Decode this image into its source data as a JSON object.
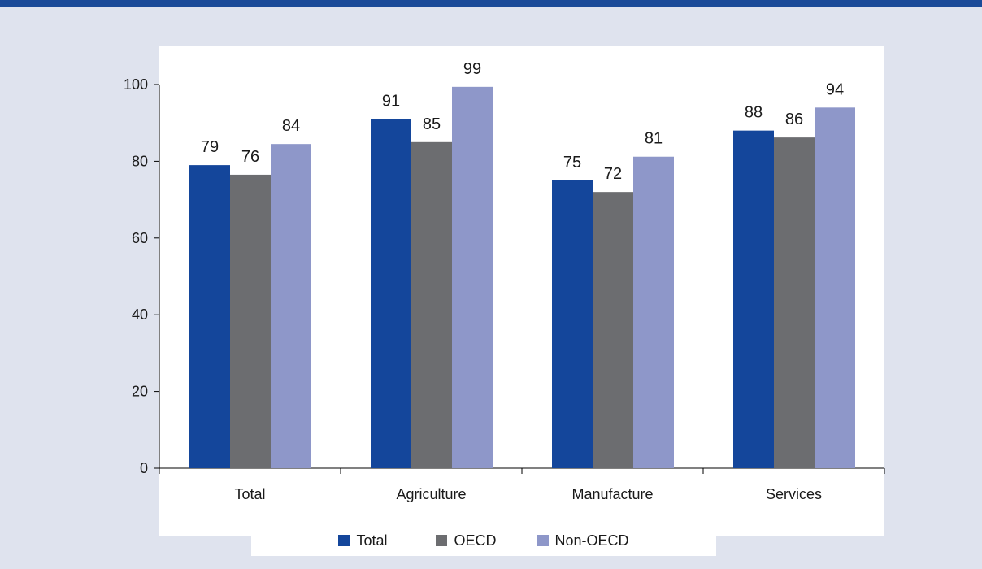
{
  "chart_data": {
    "type": "bar",
    "categories": [
      "Total",
      "Agriculture",
      "Manufacture",
      "Services"
    ],
    "series": [
      {
        "name": "Total",
        "color": "#14469b",
        "values": [
          79,
          91,
          75,
          88
        ]
      },
      {
        "name": "OECD",
        "color": "#6c6d70",
        "values": [
          76.5,
          85,
          72,
          86.2
        ]
      },
      {
        "name": "Non-OECD",
        "color": "#8e97c9",
        "values": [
          84.5,
          99.4,
          81.2,
          94
        ]
      }
    ],
    "data_labels": [
      [
        "79",
        "91",
        "75",
        "88"
      ],
      [
        "76",
        "85",
        "72",
        "86"
      ],
      [
        "84",
        "99",
        "81",
        "94"
      ]
    ],
    "yticks": [
      "0",
      "20",
      "40",
      "60",
      "80",
      "100"
    ],
    "ylim": [
      0,
      100
    ],
    "grid": false,
    "legend_position": "bottom"
  }
}
